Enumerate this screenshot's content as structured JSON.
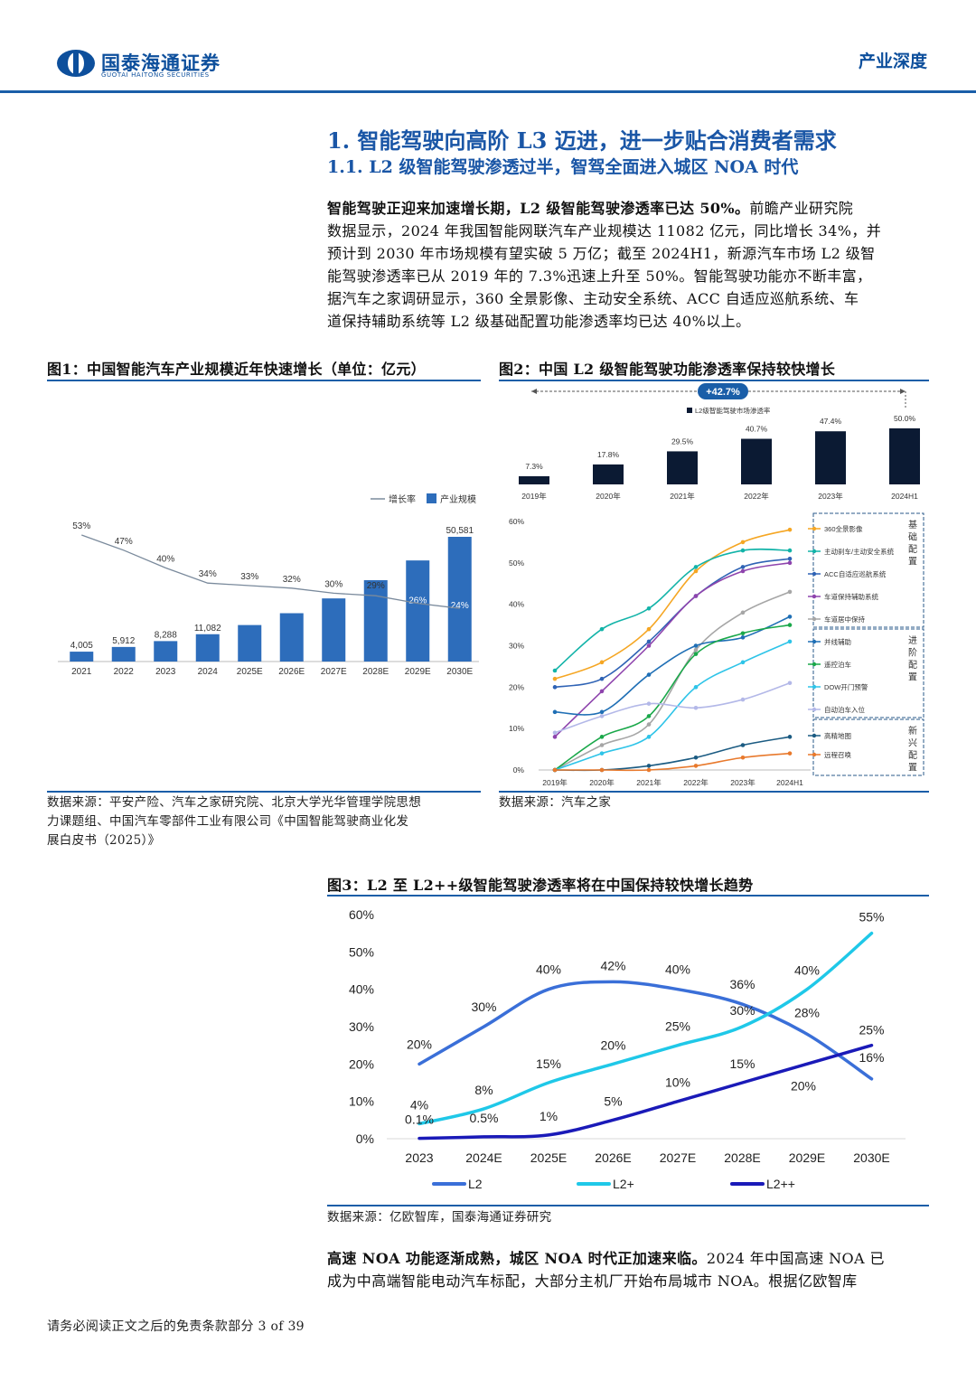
{
  "header": {
    "logo_name": "国泰海通证券",
    "logo_sub": "GUOTAI HAITONG SECURITIES",
    "section": "产业深度"
  },
  "title1": "1. 智能驾驶向高阶 L3 迈进，进一步贴合消费者需求",
  "title2": "1.1. L2 级智能驾驶渗透过半，智驾全面进入城区 NOA 时代",
  "para1": {
    "lead": "智能驾驶正迎来加速增长期，L2 级智能驾驶渗透率已达 50%。",
    "lines": [
      "前瞻产业研究院",
      "数据显示，2024 年我国智能网联汽车产业规模达 11082 亿元，同比增长 34%，并",
      "预计到 2030 年市场规模有望实破 5 万亿；截至 2024H1，新源汽车市场 L2 级智",
      "能驾驶渗透率已从 2019 年的 7.3%迅速上升至 50%。智能驾驶功能亦不断丰富，",
      "据汽车之家调研显示，360 全景影像、主动安全系统、ACC 自适应巡航系统、车",
      "道保持辅助系统等 L2 级基础配置功能渗透率均已达 40%以上。"
    ]
  },
  "fig1": {
    "title": "图1：中国智能汽车产业规模近年快速增长（单位：亿元）",
    "source_lines": [
      "数据来源：平安产险、汽车之家研究院、北京大学光华管理学院思想",
      "力课题组、中国汽车零部件工业有限公司《中国智能驾驶商业化发",
      "展白皮书（2025）》"
    ],
    "chart_data": {
      "type": "bar",
      "categories": [
        "2021",
        "2022",
        "2023",
        "2024",
        "2025E",
        "2026E",
        "2027E",
        "2028E",
        "2029E",
        "2030E"
      ],
      "series": [
        {
          "name": "产业规模",
          "values": [
            4005,
            5912,
            8288,
            11082,
            14800,
            19600,
            25600,
            33000,
            41000,
            50581
          ],
          "labels": [
            "4,005",
            "5,912",
            "8,288",
            "11,082",
            "",
            "",
            "",
            "",
            "",
            "50,581"
          ]
        },
        {
          "name": "增长率",
          "values": [
            53,
            47,
            40,
            34,
            33,
            32,
            30,
            29,
            26,
            24
          ],
          "labels": [
            "53%",
            "47%",
            "40%",
            "34%",
            "33%",
            "32%",
            "30%",
            "29%",
            "26%",
            "24%"
          ]
        }
      ],
      "legend": [
        "增长率",
        "产业规模"
      ],
      "colors": {
        "bar": "#2d6dbb",
        "line": "#7a8a9c"
      }
    }
  },
  "fig2": {
    "title": "图2：中国 L2 级智能驾驶功能渗透率保持较快增长",
    "source": "数据来源：汽车之家",
    "top_chart": {
      "type": "bar",
      "legend": "L2级智能驾驶市场渗透率",
      "growth_label": "+42.7%",
      "categories": [
        "2019年",
        "2020年",
        "2021年",
        "2022年",
        "2023年",
        "2024H1"
      ],
      "values": [
        7.3,
        17.8,
        29.5,
        40.7,
        47.4,
        50.0
      ],
      "labels": [
        "7.3%",
        "17.8%",
        "29.5%",
        "40.7%",
        "47.4%",
        "50.0%"
      ],
      "color": "#0b1a33"
    },
    "line_chart": {
      "type": "line",
      "x": [
        "2019年",
        "2020年",
        "2021年",
        "2022年",
        "2023年",
        "2024H1"
      ],
      "yticks": [
        "0%",
        "10%",
        "20%",
        "30%",
        "40%",
        "50%",
        "60%"
      ],
      "ylim": [
        0,
        60
      ],
      "groups": [
        {
          "label": [
            "基",
            "础",
            "配",
            "置"
          ]
        },
        {
          "label": [
            "进",
            "阶",
            "配",
            "置"
          ]
        },
        {
          "label": [
            "新",
            "兴",
            "配",
            "置"
          ]
        }
      ],
      "series": [
        {
          "name": "360全景影像",
          "color": "#f5a623",
          "values": [
            22,
            26,
            34,
            48,
            55,
            58
          ],
          "group": 0
        },
        {
          "name": "主动刹车/主动安全系统",
          "color": "#12b3a8",
          "values": [
            24,
            34,
            39,
            49,
            53,
            53
          ],
          "group": 0
        },
        {
          "name": "ACC自适应巡航系统",
          "color": "#2f63b5",
          "values": [
            20,
            22,
            31,
            42,
            49,
            51
          ],
          "group": 0
        },
        {
          "name": "车道保持辅助系统",
          "color": "#8e44ad",
          "values": [
            8,
            19,
            30,
            42,
            48,
            50
          ],
          "group": 0
        },
        {
          "name": "车道居中保持",
          "color": "#a6a6a6",
          "values": [
            0,
            6,
            11,
            29,
            38,
            43
          ],
          "group": 0
        },
        {
          "name": "并线辅助",
          "color": "#1f6fb5",
          "values": [
            14,
            14,
            23,
            30,
            32,
            37
          ],
          "group": 1
        },
        {
          "name": "遥控泊车",
          "color": "#1aa84a",
          "values": [
            0,
            8,
            13,
            28,
            33,
            35
          ],
          "group": 1
        },
        {
          "name": "DOW开门预警",
          "color": "#2ec4e8",
          "values": [
            0,
            4,
            8,
            20,
            26,
            31
          ],
          "group": 1
        },
        {
          "name": "自动泊车入位",
          "color": "#b3b8e8",
          "values": [
            9,
            13,
            16,
            15,
            17,
            21
          ],
          "group": 1
        },
        {
          "name": "高精地图",
          "color": "#1b5b82",
          "values": [
            0,
            0,
            1,
            3,
            6,
            8
          ],
          "group": 2
        },
        {
          "name": "远程召唤",
          "color": "#e8792c",
          "values": [
            0,
            0,
            0,
            1,
            3,
            4
          ],
          "group": 2
        }
      ]
    }
  },
  "fig3": {
    "title": "图3：L2 至 L2++级智能驾驶渗透率将在中国保持较快增长趋势",
    "source": "数据来源：亿欧智库，国泰海通证券研究",
    "chart_data": {
      "type": "line",
      "x": [
        "2023",
        "2024E",
        "2025E",
        "2026E",
        "2027E",
        "2028E",
        "2029E",
        "2030E"
      ],
      "yticks": [
        "0%",
        "10%",
        "20%",
        "30%",
        "40%",
        "50%",
        "60%"
      ],
      "ylim": [
        0,
        60
      ],
      "series": [
        {
          "name": "L2",
          "color": "#3a6fd8",
          "values": [
            20,
            30,
            40,
            42,
            40,
            36,
            28,
            16
          ],
          "labels": [
            "20%",
            "30%",
            "40%",
            "42%",
            "40%",
            "36%",
            "28%",
            "16%"
          ]
        },
        {
          "name": "L2+",
          "color": "#1fc8e8",
          "values": [
            4,
            8,
            15,
            20,
            25,
            30,
            40,
            55
          ],
          "labels": [
            "4%",
            "8%",
            "15%",
            "20%",
            "25%",
            "30%",
            "40%",
            "55%"
          ]
        },
        {
          "name": "L2++",
          "color": "#1a1ab8",
          "values": [
            0.1,
            0.5,
            1,
            5,
            10,
            15,
            20,
            25
          ],
          "labels": [
            "0.1%",
            "0.5%",
            "1%",
            "5%",
            "10%",
            "15%",
            "20%",
            "25%"
          ]
        }
      ]
    }
  },
  "para2": {
    "lead": "高速 NOA 功能逐渐成熟，城区 NOA 时代正加速来临。",
    "lines": [
      "2024 年中国高速 NOA 已",
      "成为中高端智能电动汽车标配，大部分主机厂开始布局城市 NOA。根据亿欧智库"
    ]
  },
  "footer": "请务必阅读正文之后的免责条款部分 3 of 39"
}
